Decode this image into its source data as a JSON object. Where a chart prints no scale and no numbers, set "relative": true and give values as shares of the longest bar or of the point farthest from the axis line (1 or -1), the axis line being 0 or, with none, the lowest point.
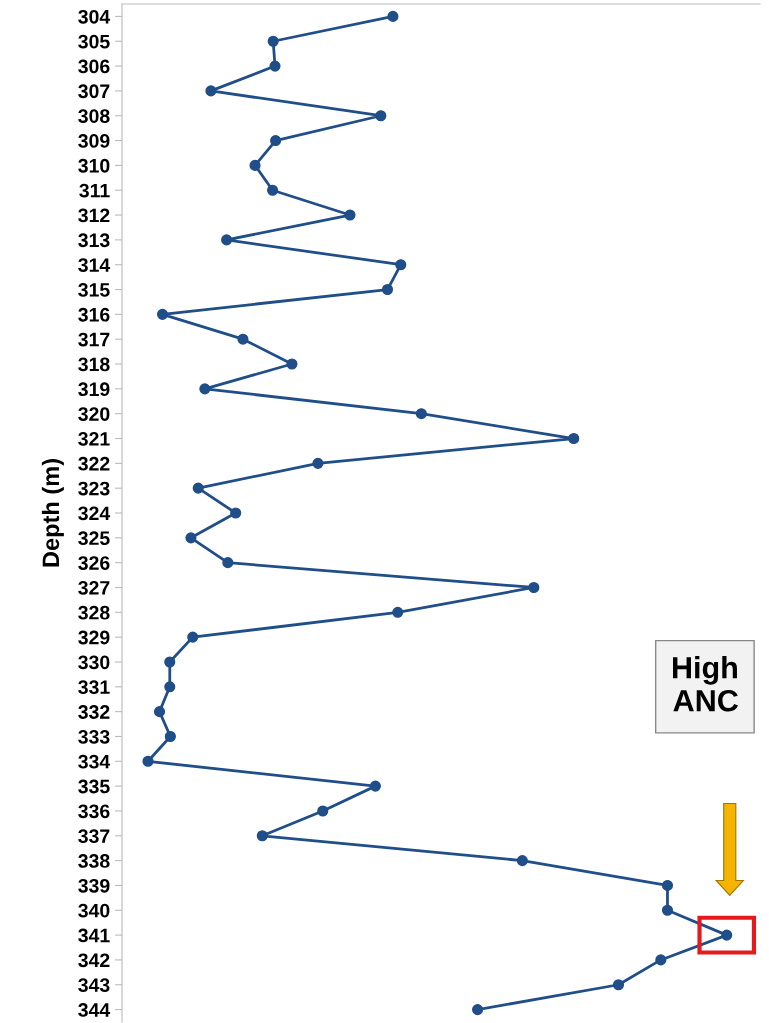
{
  "chart_data": {
    "type": "line",
    "orientation": "horizontal",
    "relative": true,
    "ylabel": "Depth (m)",
    "categories": [
      "304",
      "305",
      "306",
      "307",
      "308",
      "309",
      "310",
      "311",
      "312",
      "313",
      "314",
      "315",
      "316",
      "317",
      "318",
      "319",
      "320",
      "321",
      "322",
      "323",
      "324",
      "325",
      "326",
      "327",
      "328",
      "329",
      "330",
      "331",
      "332",
      "333",
      "334",
      "335",
      "336",
      "337",
      "338",
      "339",
      "340",
      "341",
      "342",
      "343",
      "344"
    ],
    "series": [
      {
        "color": "#1f4e89",
        "values": [
          0.448,
          0.25,
          0.253,
          0.147,
          0.428,
          0.254,
          0.22,
          0.249,
          0.377,
          0.173,
          0.461,
          0.439,
          0.067,
          0.2,
          0.281,
          0.137,
          0.495,
          0.747,
          0.324,
          0.126,
          0.188,
          0.114,
          0.175,
          0.681,
          0.456,
          0.117,
          0.079,
          0.079,
          0.062,
          0.08,
          0.043,
          0.419,
          0.332,
          0.232,
          0.662,
          0.902,
          0.902,
          1.0,
          0.891,
          0.821,
          0.588
        ]
      }
    ],
    "marker": "circle",
    "line_style": "solid",
    "grid": false,
    "legend": false,
    "annotations": [
      "High\nANC"
    ]
  }
}
